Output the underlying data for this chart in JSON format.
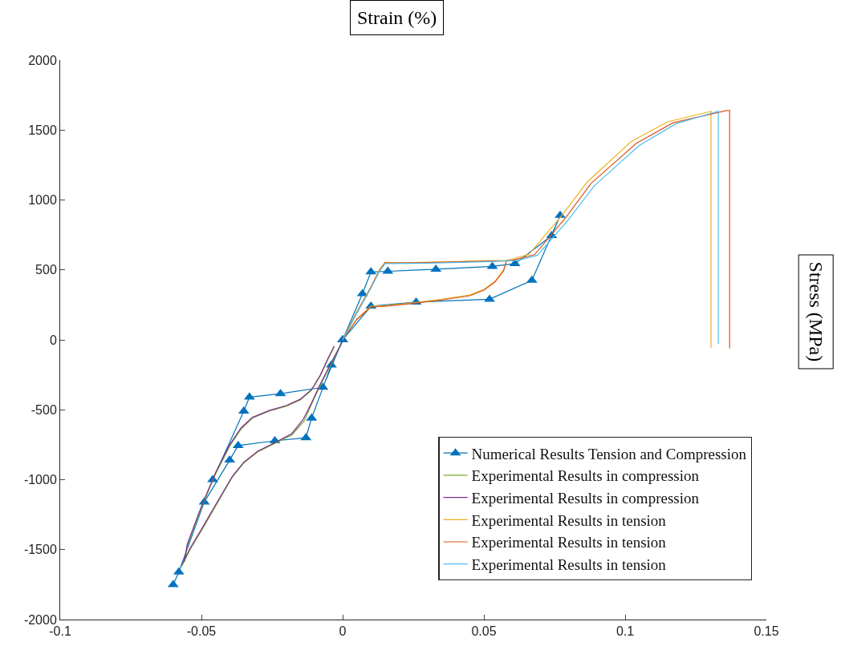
{
  "chart_data": {
    "type": "line",
    "xlabel": "Strain (%)",
    "ylabel": "Stress (MPa)",
    "xlim": [
      -0.1,
      0.15
    ],
    "xticks": [
      -0.1,
      -0.05,
      0,
      0.05,
      0.1,
      0.15
    ],
    "ylim": [
      -2000,
      2000
    ],
    "yticks": [
      -2000,
      -1500,
      -1000,
      -500,
      0,
      500,
      1000,
      1500,
      2000
    ],
    "grid": false,
    "legend": "bottom right",
    "line_style": "solid",
    "series": [
      {
        "name": "Numerical Results Tension and Compression",
        "color": "#0072bd",
        "marker": "triangle",
        "x": [
          -0.06,
          -0.058,
          -0.049,
          -0.04,
          -0.037,
          -0.024,
          -0.013,
          -0.011,
          -0.004,
          0,
          0.007,
          0.01,
          0.016,
          0.033,
          0.053,
          0.061,
          0.074,
          0.077,
          0.067,
          0.052,
          0.026,
          0.01,
          0,
          -0.007,
          -0.022,
          -0.033,
          -0.035,
          -0.046
        ],
        "values": [
          -1750,
          -1660,
          -1160,
          -860,
          -756,
          -722,
          -700,
          -560,
          -180,
          0,
          330,
          485,
          490,
          505,
          525,
          545,
          745,
          890,
          425,
          290,
          270,
          240,
          0,
          -340,
          -385,
          -410,
          -510,
          -1000
        ]
      },
      {
        "name": "Experimental Results in compression",
        "color": "#77ac30",
        "x": [
          -0.057,
          -0.054,
          -0.049,
          -0.043,
          -0.039,
          -0.035,
          -0.03,
          -0.024,
          -0.018,
          -0.0136,
          -0.011,
          -0.008,
          -0.004,
          0
        ],
        "values": [
          -1620,
          -1500,
          -1330,
          -1120,
          -980,
          -880,
          -800,
          -740,
          -680,
          -580,
          -460,
          -330,
          -170,
          -10
        ]
      },
      {
        "color": "#77ac30",
        "x": [
          -0.056,
          -0.055,
          -0.05,
          -0.045,
          -0.04,
          -0.036,
          -0.032,
          -0.026,
          -0.02,
          -0.015,
          -0.011,
          -0.008,
          -0.005,
          -0.003
        ],
        "values": [
          -1590,
          -1470,
          -1200,
          -960,
          -760,
          -640,
          -560,
          -510,
          -475,
          -430,
          -360,
          -260,
          -130,
          -50
        ]
      },
      {
        "name": "Experimental Results in compression",
        "color": "#7e2f8e",
        "x": [
          -0.057,
          -0.054,
          -0.049,
          -0.043,
          -0.039,
          -0.035,
          -0.03,
          -0.024,
          -0.018,
          -0.014,
          -0.011,
          -0.008,
          -0.004,
          0
        ],
        "values": [
          -1610,
          -1490,
          -1320,
          -1110,
          -975,
          -875,
          -795,
          -735,
          -670,
          -570,
          -450,
          -320,
          -160,
          -10
        ]
      },
      {
        "color": "#7e2f8e",
        "x": [
          -0.056,
          -0.055,
          -0.05,
          -0.045,
          -0.04,
          -0.036,
          -0.032,
          -0.026,
          -0.02,
          -0.015,
          -0.011,
          -0.008,
          -0.005,
          -0.003
        ],
        "values": [
          -1580,
          -1460,
          -1190,
          -950,
          -750,
          -630,
          -555,
          -505,
          -470,
          -425,
          -355,
          -255,
          -125,
          -45
        ]
      },
      {
        "name": "Experimental Results in tension",
        "color": "#edb120",
        "x": [
          0,
          0.005,
          0.01,
          0.013,
          0.015,
          0.02,
          0.03,
          0.04,
          0.05,
          0.058,
          0.06,
          0.066,
          0.0773,
          0.0866,
          0.102,
          0.115,
          0.1304,
          0.1304
        ],
        "values": [
          0,
          200,
          380,
          500,
          555,
          550,
          555,
          560,
          565,
          568,
          575,
          613,
          882,
          1129,
          1415,
          1559,
          1633,
          -60
        ]
      },
      {
        "color": "#edb120",
        "x": [
          0,
          0.005,
          0.01,
          0.015,
          0.025,
          0.035,
          0.045,
          0.05,
          0.054,
          0.057,
          0.058
        ],
        "values": [
          0,
          150,
          240,
          245,
          265,
          290,
          320,
          360,
          420,
          500,
          568
        ]
      },
      {
        "name": "Experimental Results in tension",
        "color": "#d95319",
        "x": [
          0,
          0.005,
          0.01,
          0.013,
          0.015,
          0.03,
          0.05,
          0.058,
          0.061,
          0.068,
          0.079,
          0.088,
          0.104,
          0.117,
          0.136,
          0.137,
          0.137
        ],
        "values": [
          0,
          195,
          375,
          495,
          550,
          552,
          562,
          565,
          572,
          610,
          875,
          1120,
          1405,
          1552,
          1640,
          1640,
          -60
        ]
      },
      {
        "color": "#d95319",
        "x": [
          0,
          0.005,
          0.01,
          0.015,
          0.025,
          0.035,
          0.045,
          0.05,
          0.054,
          0.057,
          0.058
        ],
        "values": [
          0,
          145,
          235,
          240,
          260,
          285,
          315,
          355,
          415,
          495,
          565
        ]
      },
      {
        "name": "Experimental Results in tension",
        "color": "#4dbeee",
        "x": [
          0,
          0.005,
          0.01,
          0.013,
          0.015,
          0.03,
          0.05,
          0.062,
          0.069,
          0.08,
          0.089,
          0.105,
          0.118,
          0.133,
          0.133
        ],
        "values": [
          0,
          190,
          370,
          490,
          545,
          548,
          558,
          568,
          605,
          860,
          1100,
          1390,
          1545,
          1635,
          -30
        ]
      }
    ]
  }
}
